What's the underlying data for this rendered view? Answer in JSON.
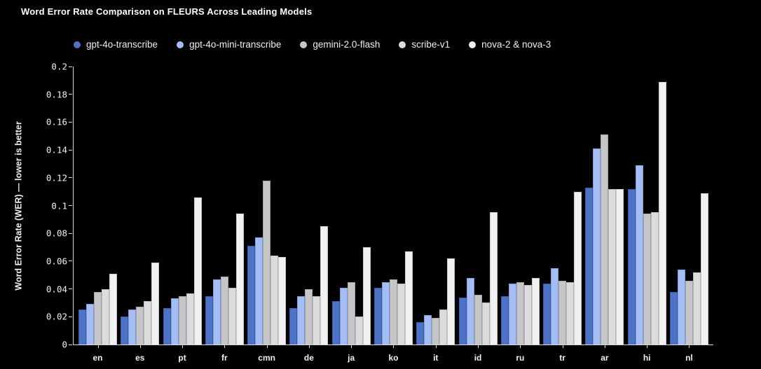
{
  "chart_data": {
    "type": "bar",
    "title": "Word Error Rate Comparison on FLEURS Across Leading Models",
    "xlabel": "",
    "ylabel": "Word Error Rate (WER) — lower is better",
    "ylim": [
      0,
      0.2
    ],
    "y_ticks": [
      0,
      0.02,
      0.04,
      0.06,
      0.08,
      0.1,
      0.12,
      0.14,
      0.16,
      0.18,
      0.2
    ],
    "y_tick_labels": [
      "0",
      "0.02",
      "0.04",
      "0.06",
      "0.08",
      "0.1",
      "0.12",
      "0.14",
      "0.16",
      "0.18",
      "0.2"
    ],
    "grid": false,
    "legend_position": "top",
    "categories": [
      "en",
      "es",
      "pt",
      "fr",
      "cmn",
      "de",
      "ja",
      "ko",
      "it",
      "id",
      "ru",
      "tr",
      "ar",
      "hi",
      "nl"
    ],
    "series": [
      {
        "name": "gpt-4o-transcribe",
        "color": "#4c73c5",
        "border_color": "#3a5aa0",
        "values": [
          0.025,
          0.02,
          0.026,
          0.035,
          0.071,
          0.026,
          0.031,
          0.041,
          0.016,
          0.034,
          0.035,
          0.044,
          0.113,
          0.112,
          0.038
        ]
      },
      {
        "name": "gpt-4o-mini-transcribe",
        "color": "#a4bdf4",
        "border_color": "#7e99d6",
        "values": [
          0.029,
          0.025,
          0.033,
          0.047,
          0.077,
          0.035,
          0.041,
          0.045,
          0.021,
          0.048,
          0.044,
          0.055,
          0.141,
          0.129,
          0.054
        ]
      },
      {
        "name": "gemini-2.0-flash",
        "color": "#c6c6c8",
        "border_color": "#a2a2a4",
        "values": [
          0.038,
          0.027,
          0.035,
          0.049,
          0.118,
          0.04,
          0.045,
          0.047,
          0.019,
          0.036,
          0.045,
          0.046,
          0.151,
          0.094,
          0.046
        ]
      },
      {
        "name": "scribe-v1",
        "color": "#dcdcde",
        "border_color": "#b8b8ba",
        "values": [
          0.04,
          0.031,
          0.037,
          0.041,
          0.064,
          0.035,
          0.02,
          0.044,
          0.025,
          0.03,
          0.043,
          0.045,
          0.112,
          0.095,
          0.052
        ]
      },
      {
        "name": "nova-2 & nova-3",
        "color": "#f1f1f1",
        "border_color": "#c8c8c8",
        "values": [
          0.051,
          0.059,
          0.106,
          0.094,
          0.063,
          0.085,
          0.07,
          0.067,
          0.062,
          0.095,
          0.048,
          0.11,
          0.112,
          0.189,
          0.109
        ]
      }
    ],
    "colors": {
      "background": "#000000",
      "axis": "#d9d9d9",
      "text": "#f0f0f0",
      "title": "#ffffff"
    }
  }
}
